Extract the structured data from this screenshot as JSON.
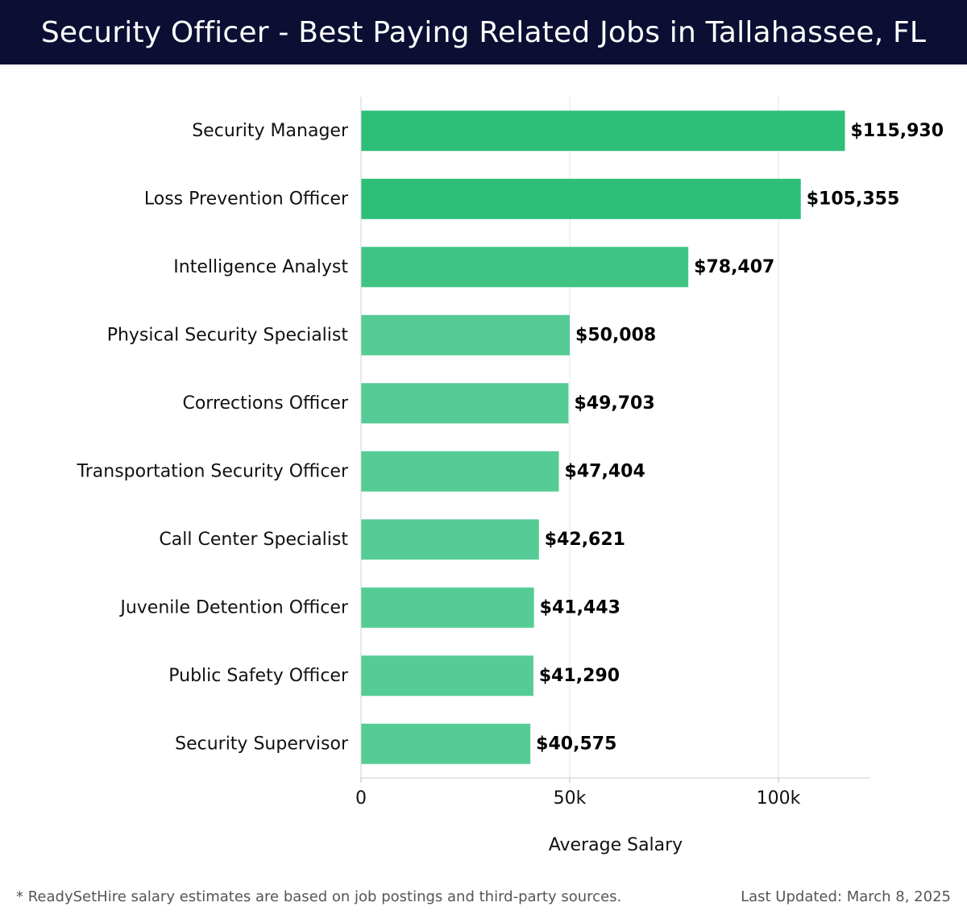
{
  "header": {
    "title": "Security Officer - Best Paying Related Jobs in Tallahassee, FL"
  },
  "chart_data": {
    "type": "bar",
    "orientation": "horizontal",
    "title": "Security Officer - Best Paying Related Jobs in Tallahassee, FL",
    "xlabel": "Average Salary",
    "ylabel": "",
    "categories": [
      "Security Manager",
      "Loss Prevention Officer",
      "Intelligence Analyst",
      "Physical Security Specialist",
      "Corrections Officer",
      "Transportation Security Officer",
      "Call Center Specialist",
      "Juvenile Detention Officer",
      "Public Safety Officer",
      "Security Supervisor"
    ],
    "values": [
      115930,
      105355,
      78407,
      50008,
      49703,
      47404,
      42621,
      41443,
      41290,
      40575
    ],
    "value_labels": [
      "$115,930",
      "$105,355",
      "$78,407",
      "$50,008",
      "$49,703",
      "$47,404",
      "$42,621",
      "$41,443",
      "$41,290",
      "$40,575"
    ],
    "x_ticks": [
      0,
      50000,
      100000
    ],
    "x_tick_labels": [
      "0",
      "50k",
      "100k"
    ],
    "xlim": [
      0,
      122000
    ],
    "grid": true,
    "colors": {
      "top_two": "#2dbf78",
      "third": "#3fc483",
      "rest": "#55cc95"
    }
  },
  "footer": {
    "note": "* ReadySetHire salary estimates are based on job postings and third-party sources.",
    "updated": "Last Updated: March 8, 2025"
  }
}
